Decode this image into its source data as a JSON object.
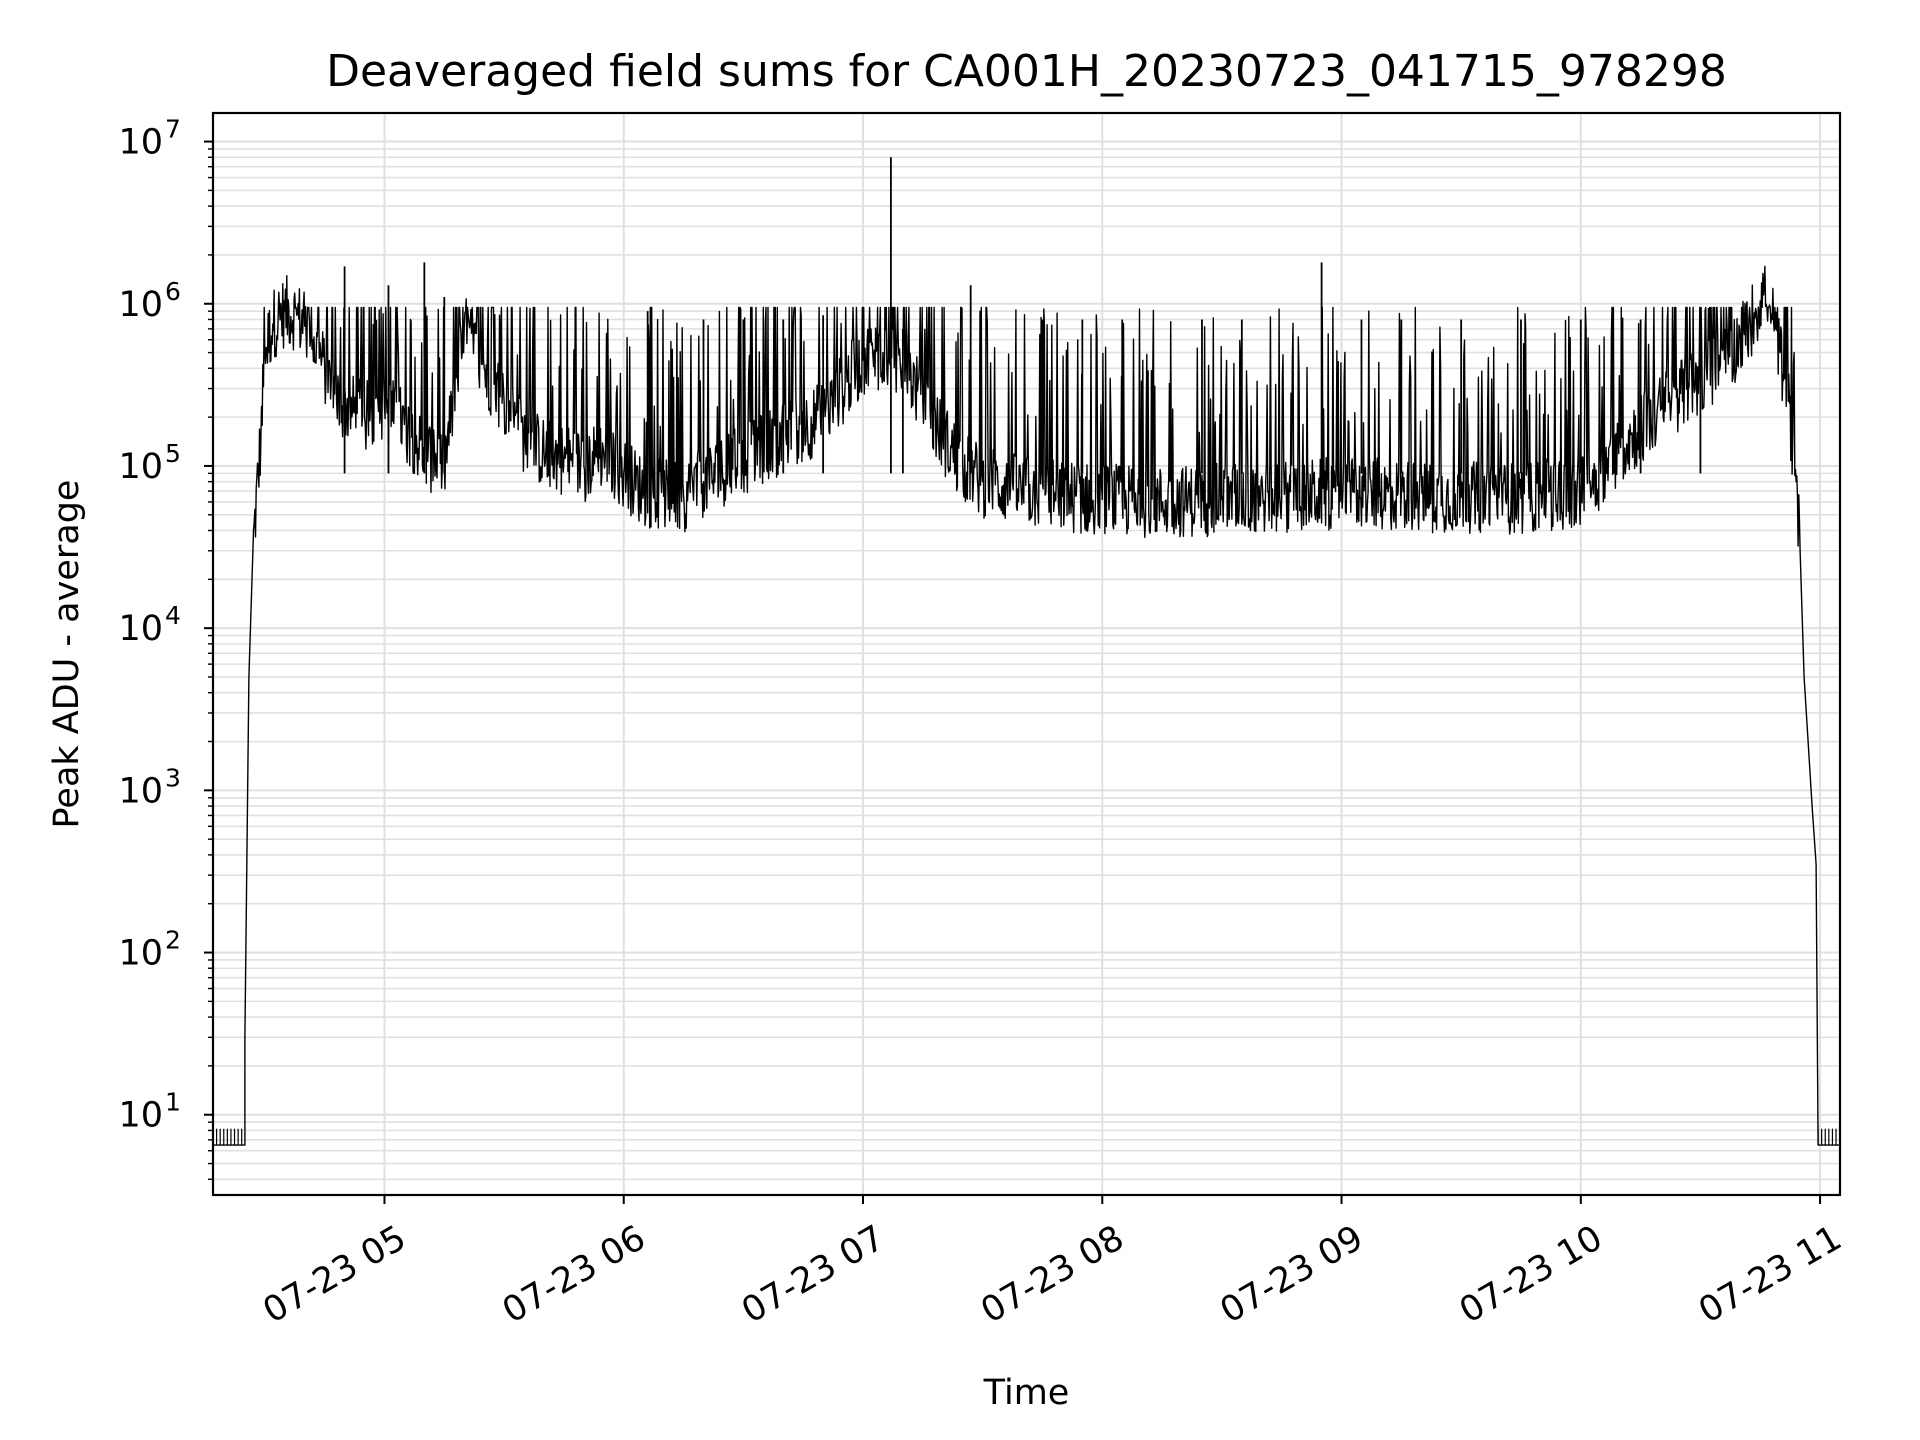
{
  "chart_data": {
    "type": "line",
    "title": "Deaveraged field sums for CA001H_20230723_041715_978298",
    "xlabel": "Time",
    "ylabel": "Peak ADU - average",
    "yscale": "log",
    "ylim": [
      3.2,
      15000000
    ],
    "xlim": [
      "07-23 04:17",
      "07-23 11:05"
    ],
    "grid": true,
    "line_color": "#000000",
    "grid_color": "#e0e0e0",
    "x_ticks": [
      {
        "label": "07-23 05",
        "time": "05:00"
      },
      {
        "label": "07-23 06",
        "time": "06:00"
      },
      {
        "label": "07-23 07",
        "time": "07:00"
      },
      {
        "label": "07-23 08",
        "time": "08:00"
      },
      {
        "label": "07-23 09",
        "time": "09:00"
      },
      {
        "label": "07-23 10",
        "time": "10:00"
      },
      {
        "label": "07-23 11",
        "time": "11:00"
      }
    ],
    "y_ticks": [
      {
        "base": "10",
        "exp": "1",
        "value": 10
      },
      {
        "base": "10",
        "exp": "2",
        "value": 100
      },
      {
        "base": "10",
        "exp": "3",
        "value": 1000
      },
      {
        "base": "10",
        "exp": "4",
        "value": 10000
      },
      {
        "base": "10",
        "exp": "5",
        "value": 100000
      },
      {
        "base": "10",
        "exp": "6",
        "value": 1000000
      },
      {
        "base": "10",
        "exp": "7",
        "value": 10000000
      }
    ],
    "series": [
      {
        "points": [
          [
            "04:17",
            6.5
          ],
          [
            "04:20",
            6.5
          ],
          [
            "04:25",
            6.5
          ],
          [
            "04:25",
            30
          ],
          [
            "04:26",
            5000
          ],
          [
            "04:27",
            30000
          ],
          [
            "04:29",
            150000
          ],
          [
            "04:30",
            500000
          ],
          [
            "04:32",
            750000
          ],
          [
            "04:35",
            900000
          ],
          [
            "04:38",
            850000
          ],
          [
            "04:42",
            600000
          ],
          [
            "04:45",
            400000
          ],
          [
            "04:48",
            250000
          ],
          [
            "04:52",
            220000
          ],
          [
            "04:55",
            200000
          ],
          [
            "05:00",
            230000
          ],
          [
            "05:05",
            180000
          ],
          [
            "05:10",
            120000
          ],
          [
            "05:15",
            100000
          ],
          [
            "05:20",
            700000
          ],
          [
            "05:25",
            400000
          ],
          [
            "05:30",
            250000
          ],
          [
            "05:35",
            150000
          ],
          [
            "05:40",
            120000
          ],
          [
            "05:45",
            110000
          ],
          [
            "05:50",
            100000
          ],
          [
            "05:55",
            120000
          ],
          [
            "06:00",
            90000
          ],
          [
            "06:05",
            70000
          ],
          [
            "06:10",
            65000
          ],
          [
            "06:15",
            65000
          ],
          [
            "06:20",
            80000
          ],
          [
            "06:30",
            110000
          ],
          [
            "06:40",
            150000
          ],
          [
            "06:50",
            200000
          ],
          [
            "07:00",
            450000
          ],
          [
            "07:05",
            500000
          ],
          [
            "07:10",
            450000
          ],
          [
            "07:15",
            250000
          ],
          [
            "07:20",
            150000
          ],
          [
            "07:25",
            100000
          ],
          [
            "07:30",
            80000
          ],
          [
            "07:40",
            70000
          ],
          [
            "07:50",
            65000
          ],
          [
            "08:00",
            62000
          ],
          [
            "08:15",
            60000
          ],
          [
            "08:30",
            62000
          ],
          [
            "08:45",
            65000
          ],
          [
            "09:00",
            68000
          ],
          [
            "09:15",
            66000
          ],
          [
            "09:30",
            64000
          ],
          [
            "09:45",
            63000
          ],
          [
            "10:00",
            70000
          ],
          [
            "10:05",
            90000
          ],
          [
            "10:10",
            130000
          ],
          [
            "10:15",
            170000
          ],
          [
            "10:20",
            220000
          ],
          [
            "10:25",
            280000
          ],
          [
            "10:30",
            340000
          ],
          [
            "10:35",
            420000
          ],
          [
            "10:40",
            600000
          ],
          [
            "10:44",
            900000
          ],
          [
            "10:46",
            1300000
          ],
          [
            "10:48",
            800000
          ],
          [
            "10:50",
            500000
          ],
          [
            "10:52",
            250000
          ],
          [
            "10:54",
            80000
          ],
          [
            "10:55",
            30000
          ],
          [
            "10:56",
            5000
          ],
          [
            "10:57",
            2000
          ],
          [
            "10:58",
            800
          ],
          [
            "10:59",
            350
          ],
          [
            "10:59.5",
            6.5
          ],
          [
            "11:05",
            6.5
          ]
        ],
        "spikes": [
          [
            "04:50",
            1700000
          ],
          [
            "05:01",
            1300000
          ],
          [
            "05:10",
            1800000
          ],
          [
            "05:15",
            1100000
          ],
          [
            "06:06",
            900000
          ],
          [
            "06:20",
            800000
          ],
          [
            "06:30",
            800000
          ],
          [
            "06:40",
            800000
          ],
          [
            "06:50",
            850000
          ],
          [
            "07:07",
            8000000
          ],
          [
            "07:10",
            700000
          ],
          [
            "07:27",
            1300000
          ],
          [
            "07:45",
            800000
          ],
          [
            "07:55",
            800000
          ],
          [
            "08:05",
            800000
          ],
          [
            "08:25",
            800000
          ],
          [
            "08:35",
            800000
          ],
          [
            "08:55",
            1800000
          ],
          [
            "09:05",
            800000
          ],
          [
            "09:15",
            800000
          ],
          [
            "09:30",
            800000
          ],
          [
            "09:45",
            800000
          ],
          [
            "10:00",
            800000
          ],
          [
            "10:15",
            800000
          ],
          [
            "10:30",
            800000
          ]
        ]
      }
    ]
  }
}
